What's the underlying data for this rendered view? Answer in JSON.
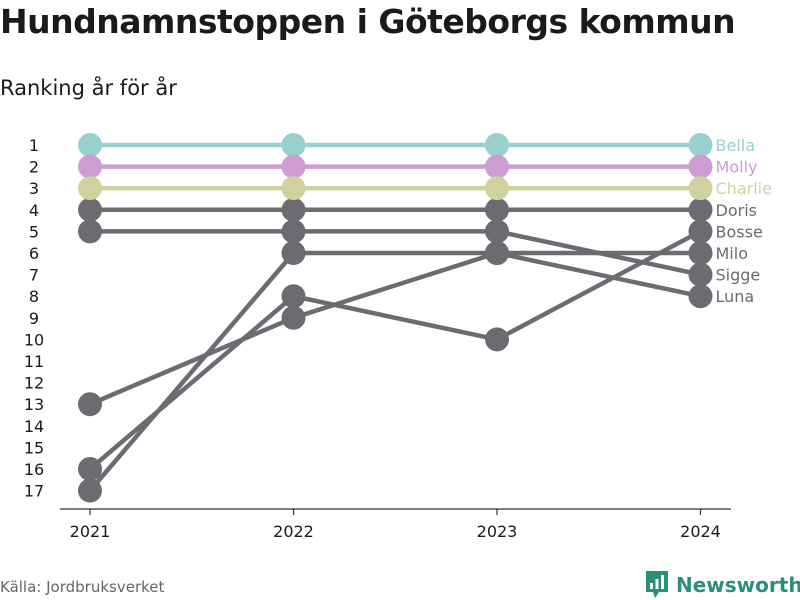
{
  "title": "Hundnamnstoppen i Göteborgs kommun",
  "subtitle": "Ranking år för år",
  "source": "Källa: Jordbruksverket",
  "brand": {
    "name": "Newsworthy",
    "icon": "newsworthy-logo-icon",
    "color": "#2a8f79"
  },
  "chart_data": {
    "type": "line",
    "x": [
      "2021",
      "2022",
      "2023",
      "2024"
    ],
    "y_ticks": [
      1,
      2,
      3,
      4,
      5,
      6,
      7,
      8,
      9,
      10,
      11,
      12,
      13,
      14,
      15,
      16,
      17
    ],
    "y_reversed": true,
    "ylim": [
      1,
      17
    ],
    "grid": false,
    "series": [
      {
        "name": "Bella",
        "values": [
          1,
          1,
          1,
          1
        ],
        "color": "#98d0d0"
      },
      {
        "name": "Molly",
        "values": [
          2,
          2,
          2,
          2
        ],
        "color": "#cd9cd2"
      },
      {
        "name": "Charlie",
        "values": [
          3,
          3,
          3,
          3
        ],
        "color": "#cfd29d"
      },
      {
        "name": "Doris",
        "values": [
          4,
          4,
          4,
          4
        ],
        "color": "#6c6b71"
      },
      {
        "name": "Bosse",
        "values": [
          16,
          8,
          10,
          5
        ],
        "color": "#6c6b71"
      },
      {
        "name": "Milo",
        "values": [
          17,
          6,
          6,
          6
        ],
        "color": "#6c6b71"
      },
      {
        "name": "Sigge",
        "values": [
          5,
          5,
          5,
          7
        ],
        "color": "#6c6b71"
      },
      {
        "name": "Luna",
        "values": [
          13,
          9,
          6,
          8
        ],
        "color": "#6c6b71"
      }
    ]
  }
}
